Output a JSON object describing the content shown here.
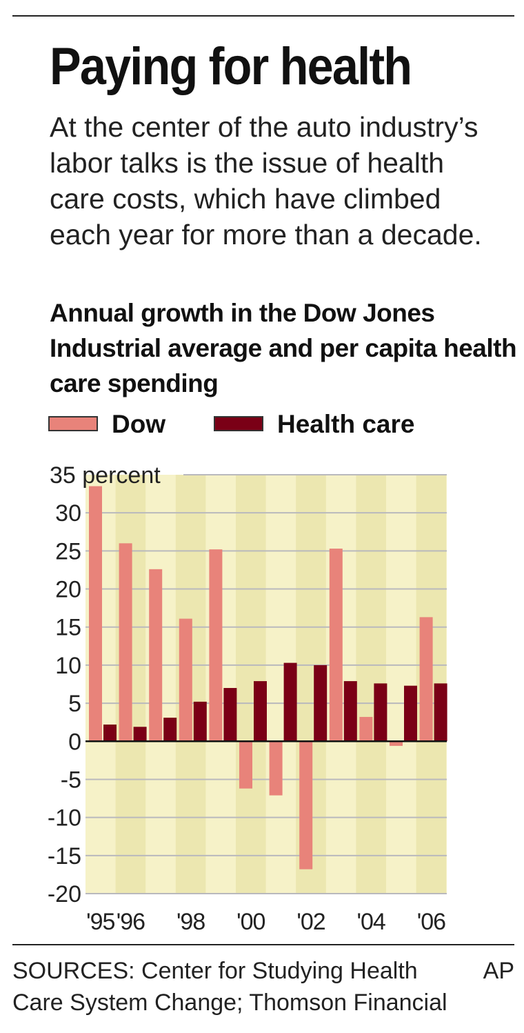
{
  "headline": "Paying for health",
  "intro": "At the center of the auto industry’s labor talks is the issue of health care costs, which have climbed each year for more than a decade.",
  "legend": {
    "items": [
      {
        "label": "Dow",
        "color": "#e8837a"
      },
      {
        "label": "Health care",
        "color": "#7a0016"
      }
    ]
  },
  "colors": {
    "dow": "#e8837a",
    "health": "#7a0016",
    "plot_background": "#f6f2c8",
    "alt_band": "#ece7b0",
    "gridline": "#b9b9bd",
    "zero_line": "#111111"
  },
  "chart_data": {
    "type": "bar",
    "title": "Annual growth in the Dow Jones Industrial average and per capita health care spending",
    "ylabel": "percent",
    "ylim": [
      -20,
      35
    ],
    "yticks": [
      35,
      30,
      25,
      20,
      15,
      10,
      5,
      0,
      -5,
      -10,
      -15,
      -20
    ],
    "ytick_labels": [
      "35 percent",
      "30",
      "25",
      "20",
      "15",
      "10",
      "5",
      "0",
      "-5",
      "-10",
      "-15",
      "-20"
    ],
    "categories": [
      "1995",
      "1996",
      "1997",
      "1998",
      "1999",
      "2000",
      "2001",
      "2002",
      "2003",
      "2004",
      "2005",
      "2006"
    ],
    "xtick_labels": [
      "'95",
      "'96",
      "",
      "'98",
      "",
      "'00",
      "",
      "'02",
      "",
      "'04",
      "",
      "'06"
    ],
    "grid": true,
    "legend_position": "top",
    "series": [
      {
        "name": "Dow",
        "values": [
          33.5,
          26.0,
          22.6,
          16.1,
          25.2,
          -6.2,
          -7.1,
          -16.8,
          25.3,
          3.2,
          -0.6,
          16.3
        ]
      },
      {
        "name": "Health care",
        "values": [
          2.2,
          1.9,
          3.1,
          5.2,
          7.0,
          7.9,
          10.3,
          10.0,
          7.9,
          7.6,
          7.3,
          7.6
        ]
      }
    ]
  },
  "source": "SOURCES: Center for Studying Health Care System Change; Thomson Financial",
  "credit": "AP"
}
